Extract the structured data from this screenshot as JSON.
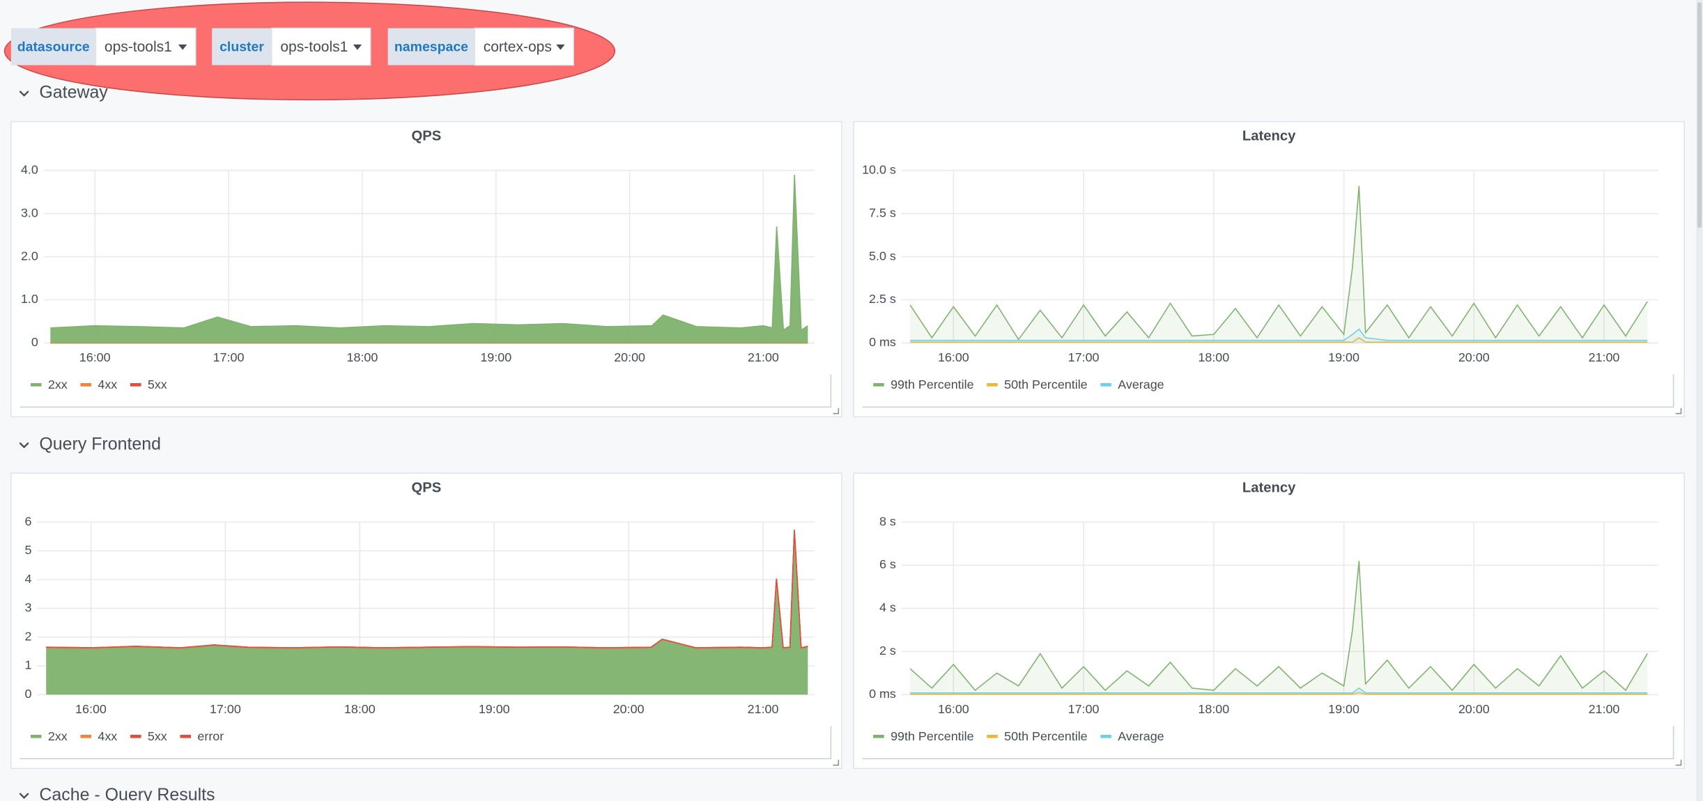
{
  "variables": [
    {
      "label": "datasource",
      "value": "ops-tools1"
    },
    {
      "label": "cluster",
      "value": "ops-tools1"
    },
    {
      "label": "namespace",
      "value": "cortex-ops"
    }
  ],
  "rows": [
    {
      "title": "Gateway",
      "panels": [
        {
          "chart_data": {
            "type": "area",
            "stacked": false,
            "title": "QPS",
            "grid": true,
            "x": [
              "15:40",
              "16:00",
              "16:20",
              "16:40",
              "16:55",
              "17:10",
              "17:30",
              "17:50",
              "18:10",
              "18:30",
              "18:50",
              "19:10",
              "19:30",
              "19:50",
              "20:10",
              "20:15",
              "20:30",
              "20:50",
              "21:00",
              "21:04",
              "21:06",
              "21:09",
              "21:12",
              "21:14",
              "21:17",
              "21:20"
            ],
            "xlim": [
              "15:37",
              "21:23"
            ],
            "xticks": [
              "16:00",
              "17:00",
              "18:00",
              "19:00",
              "20:00",
              "21:00"
            ],
            "ylim": [
              0,
              4
            ],
            "yticks": [
              0,
              {
                "value": 1,
                "label": "1.0"
              },
              {
                "value": 2,
                "label": "2.0"
              },
              {
                "value": 3,
                "label": "3.0"
              },
              {
                "value": 4,
                "label": "4.0"
              }
            ],
            "series": [
              {
                "name": "2xx",
                "color": "#7eb26d",
                "values": [
                  0.35,
                  0.4,
                  0.38,
                  0.35,
                  0.6,
                  0.38,
                  0.4,
                  0.35,
                  0.4,
                  0.38,
                  0.45,
                  0.42,
                  0.45,
                  0.38,
                  0.4,
                  0.65,
                  0.38,
                  0.35,
                  0.4,
                  0.35,
                  2.7,
                  0.3,
                  0.4,
                  3.9,
                  0.3,
                  0.4
                ]
              },
              {
                "name": "4xx",
                "color": "#ef843c",
                "values": [
                  0,
                  0,
                  0,
                  0,
                  0,
                  0,
                  0,
                  0,
                  0,
                  0,
                  0,
                  0,
                  0,
                  0,
                  0,
                  0,
                  0,
                  0,
                  0,
                  0,
                  0,
                  0,
                  0,
                  0,
                  0,
                  0
                ]
              },
              {
                "name": "5xx",
                "color": "#e24d42",
                "values": [
                  0,
                  0,
                  0,
                  0,
                  0,
                  0,
                  0,
                  0,
                  0,
                  0,
                  0,
                  0,
                  0,
                  0,
                  0,
                  0,
                  0,
                  0,
                  0,
                  0,
                  0,
                  0,
                  0,
                  0,
                  0,
                  0
                ]
              }
            ]
          }
        },
        {
          "chart_data": {
            "type": "line",
            "title": "Latency",
            "grid": true,
            "x": [
              "15:40",
              "15:50",
              "16:00",
              "16:10",
              "16:20",
              "16:30",
              "16:40",
              "16:50",
              "17:00",
              "17:10",
              "17:20",
              "17:30",
              "17:40",
              "17:50",
              "18:00",
              "18:10",
              "18:20",
              "18:30",
              "18:40",
              "18:50",
              "19:00",
              "19:04",
              "19:07",
              "19:10",
              "19:20",
              "19:30",
              "19:40",
              "19:50",
              "20:00",
              "20:10",
              "20:20",
              "20:30",
              "20:40",
              "20:50",
              "21:00",
              "21:10",
              "21:20"
            ],
            "xlim": [
              "15:36",
              "21:25"
            ],
            "xticks": [
              "16:00",
              "17:00",
              "18:00",
              "19:00",
              "20:00",
              "21:00"
            ],
            "ylim": [
              0,
              10
            ],
            "yticks": [
              {
                "value": 0,
                "label": "0 ms"
              },
              {
                "value": 2.5,
                "label": "2.5 s"
              },
              {
                "value": 5,
                "label": "5.0 s"
              },
              {
                "value": 7.5,
                "label": "7.5 s"
              },
              {
                "value": 10,
                "label": "10.0 s"
              }
            ],
            "series": [
              {
                "name": "99th Percentile",
                "color": "#7eb26d",
                "values": [
                  2.2,
                  0.3,
                  2.1,
                  0.4,
                  2.2,
                  0.2,
                  1.9,
                  0.3,
                  2.2,
                  0.4,
                  1.8,
                  0.3,
                  2.3,
                  0.4,
                  0.5,
                  2.0,
                  0.3,
                  2.2,
                  0.4,
                  2.1,
                  0.5,
                  4.4,
                  9.1,
                  0.6,
                  2.2,
                  0.3,
                  2.1,
                  0.4,
                  2.3,
                  0.3,
                  2.2,
                  0.4,
                  2.1,
                  0.3,
                  2.2,
                  0.4,
                  2.4
                ]
              },
              {
                "name": "50th Percentile",
                "color": "#eab839",
                "values": [
                  0.05,
                  0.05,
                  0.05,
                  0.05,
                  0.05,
                  0.05,
                  0.05,
                  0.05,
                  0.05,
                  0.05,
                  0.05,
                  0.05,
                  0.05,
                  0.05,
                  0.05,
                  0.05,
                  0.05,
                  0.05,
                  0.05,
                  0.05,
                  0.05,
                  0.05,
                  0.3,
                  0.05,
                  0.05,
                  0.05,
                  0.05,
                  0.05,
                  0.05,
                  0.05,
                  0.05,
                  0.05,
                  0.05,
                  0.05,
                  0.05,
                  0.05,
                  0.05
                ]
              },
              {
                "name": "Average",
                "color": "#6ed0e0",
                "values": [
                  0.15,
                  0.15,
                  0.15,
                  0.15,
                  0.15,
                  0.15,
                  0.15,
                  0.15,
                  0.15,
                  0.15,
                  0.15,
                  0.15,
                  0.15,
                  0.15,
                  0.15,
                  0.15,
                  0.15,
                  0.15,
                  0.15,
                  0.15,
                  0.15,
                  0.5,
                  0.8,
                  0.3,
                  0.15,
                  0.15,
                  0.15,
                  0.15,
                  0.15,
                  0.15,
                  0.15,
                  0.15,
                  0.15,
                  0.15,
                  0.15,
                  0.15,
                  0.15
                ]
              }
            ]
          }
        }
      ]
    },
    {
      "title": "Query Frontend",
      "panels": [
        {
          "chart_data": {
            "type": "area",
            "stacked": true,
            "title": "QPS",
            "grid": true,
            "x": [
              "15:40",
              "16:00",
              "16:20",
              "16:40",
              "16:55",
              "17:10",
              "17:30",
              "17:50",
              "18:10",
              "18:30",
              "18:50",
              "19:10",
              "19:30",
              "19:50",
              "20:10",
              "20:15",
              "20:30",
              "20:50",
              "21:00",
              "21:04",
              "21:06",
              "21:09",
              "21:12",
              "21:14",
              "21:17",
              "21:20"
            ],
            "xlim": [
              "15:36",
              "21:23"
            ],
            "xticks": [
              "16:00",
              "17:00",
              "18:00",
              "19:00",
              "20:00",
              "21:00"
            ],
            "ylim": [
              0,
              6
            ],
            "yticks": [
              0,
              1,
              2,
              3,
              4,
              5,
              6
            ],
            "series": [
              {
                "name": "2xx",
                "color": "#7eb26d",
                "values": [
                  1.62,
                  1.6,
                  1.65,
                  1.6,
                  1.7,
                  1.62,
                  1.6,
                  1.63,
                  1.6,
                  1.62,
                  1.64,
                  1.62,
                  1.63,
                  1.6,
                  1.62,
                  1.9,
                  1.6,
                  1.62,
                  1.6,
                  1.62,
                  4.0,
                  1.6,
                  1.62,
                  5.7,
                  1.6,
                  1.65
                ]
              },
              {
                "name": "4xx",
                "color": "#ef843c",
                "values": [
                  0.03,
                  0.03,
                  0.03,
                  0.03,
                  0.03,
                  0.03,
                  0.03,
                  0.03,
                  0.03,
                  0.03,
                  0.03,
                  0.03,
                  0.03,
                  0.03,
                  0.03,
                  0.03,
                  0.03,
                  0.03,
                  0.03,
                  0.03,
                  0.03,
                  0.03,
                  0.03,
                  0.03,
                  0.03,
                  0.03
                ]
              },
              {
                "name": "5xx",
                "color": "#e24d42",
                "values": [
                  0,
                  0,
                  0,
                  0,
                  0,
                  0,
                  0,
                  0,
                  0,
                  0,
                  0,
                  0,
                  0,
                  0,
                  0,
                  0,
                  0,
                  0,
                  0,
                  0,
                  0,
                  0,
                  0,
                  0,
                  0,
                  0
                ]
              },
              {
                "name": "error",
                "color": "#e24d42",
                "values": [
                  0,
                  0,
                  0,
                  0,
                  0,
                  0,
                  0,
                  0,
                  0,
                  0,
                  0,
                  0,
                  0,
                  0,
                  0,
                  0,
                  0,
                  0,
                  0,
                  0,
                  0,
                  0,
                  0,
                  0,
                  0,
                  0
                ]
              }
            ]
          }
        },
        {
          "chart_data": {
            "type": "line",
            "title": "Latency",
            "grid": true,
            "x": [
              "15:40",
              "15:50",
              "16:00",
              "16:10",
              "16:20",
              "16:30",
              "16:40",
              "16:50",
              "17:00",
              "17:10",
              "17:20",
              "17:30",
              "17:40",
              "17:50",
              "18:00",
              "18:10",
              "18:20",
              "18:30",
              "18:40",
              "18:50",
              "19:00",
              "19:04",
              "19:07",
              "19:10",
              "19:20",
              "19:30",
              "19:40",
              "19:50",
              "20:00",
              "20:10",
              "20:20",
              "20:30",
              "20:40",
              "20:50",
              "21:00",
              "21:10",
              "21:20"
            ],
            "xlim": [
              "15:36",
              "21:25"
            ],
            "xticks": [
              "16:00",
              "17:00",
              "18:00",
              "19:00",
              "20:00",
              "21:00"
            ],
            "ylim": [
              0,
              8
            ],
            "yticks": [
              {
                "value": 0,
                "label": "0 ms"
              },
              {
                "value": 2,
                "label": "2 s"
              },
              {
                "value": 4,
                "label": "4 s"
              },
              {
                "value": 6,
                "label": "6 s"
              },
              {
                "value": 8,
                "label": "8 s"
              }
            ],
            "series": [
              {
                "name": "99th Percentile",
                "color": "#7eb26d",
                "values": [
                  1.2,
                  0.3,
                  1.4,
                  0.2,
                  1.0,
                  0.4,
                  1.9,
                  0.3,
                  1.3,
                  0.2,
                  1.1,
                  0.4,
                  1.5,
                  0.3,
                  0.2,
                  1.2,
                  0.4,
                  1.3,
                  0.3,
                  1.0,
                  0.4,
                  3.0,
                  6.2,
                  0.5,
                  1.6,
                  0.3,
                  1.3,
                  0.2,
                  1.4,
                  0.3,
                  1.2,
                  0.4,
                  1.8,
                  0.3,
                  1.1,
                  0.2,
                  1.9
                ]
              },
              {
                "name": "50th Percentile",
                "color": "#eab839",
                "values": [
                  0.02,
                  0.02,
                  0.02,
                  0.02,
                  0.02,
                  0.02,
                  0.02,
                  0.02,
                  0.02,
                  0.02,
                  0.02,
                  0.02,
                  0.02,
                  0.02,
                  0.02,
                  0.02,
                  0.02,
                  0.02,
                  0.02,
                  0.02,
                  0.02,
                  0.02,
                  0.1,
                  0.02,
                  0.02,
                  0.02,
                  0.02,
                  0.02,
                  0.02,
                  0.02,
                  0.02,
                  0.02,
                  0.02,
                  0.02,
                  0.02,
                  0.02,
                  0.02
                ]
              },
              {
                "name": "Average",
                "color": "#6ed0e0",
                "values": [
                  0.08,
                  0.08,
                  0.08,
                  0.08,
                  0.08,
                  0.08,
                  0.08,
                  0.08,
                  0.08,
                  0.08,
                  0.08,
                  0.08,
                  0.08,
                  0.08,
                  0.08,
                  0.08,
                  0.08,
                  0.08,
                  0.08,
                  0.08,
                  0.08,
                  0.08,
                  0.3,
                  0.08,
                  0.08,
                  0.08,
                  0.08,
                  0.08,
                  0.08,
                  0.08,
                  0.08,
                  0.08,
                  0.08,
                  0.08,
                  0.08,
                  0.08,
                  0.08
                ]
              }
            ]
          }
        }
      ]
    },
    {
      "title": "Cache - Query Results"
    }
  ]
}
